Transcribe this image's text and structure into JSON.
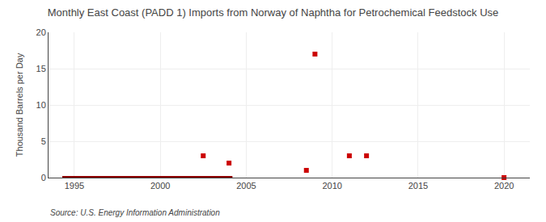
{
  "chart_data": {
    "type": "scatter",
    "title": "Monthly East Coast (PADD 1) Imports from Norway of Naphtha for Petrochemical Feedstock Use",
    "ylabel": "Thousand Barrels per Day",
    "annotations": [
      "Source: U.S. Energy Information Administration"
    ],
    "series": [
      {
        "type": "line",
        "color": "#8b0000",
        "x": [
          1994.3,
          2004.2
        ],
        "values": [
          0,
          0
        ]
      },
      {
        "type": "scatter",
        "color": "#cc0000",
        "marker": "square",
        "x": [
          2002.5,
          2004.0,
          2008.5,
          2009.0,
          2011.0,
          2012.0,
          2020.0
        ],
        "values": [
          3.0,
          2.0,
          1.0,
          17.0,
          3.0,
          3.0,
          0.0
        ]
      }
    ],
    "xlim": [
      1993.5,
      2021.5
    ],
    "ylim": [
      0,
      20
    ],
    "xticks": [
      1995,
      2000,
      2005,
      2010,
      2015,
      2020
    ],
    "yticks": [
      0,
      5,
      10,
      15,
      20
    ],
    "grid": true
  }
}
